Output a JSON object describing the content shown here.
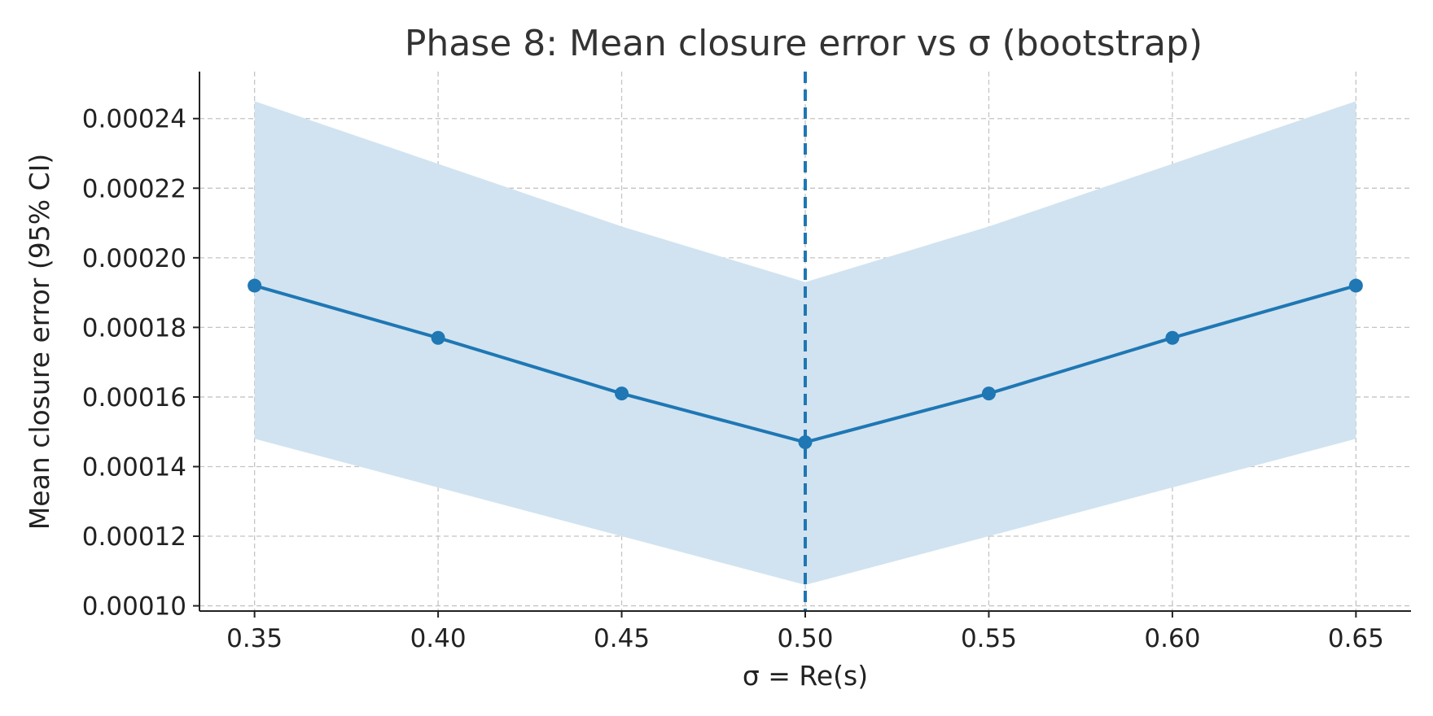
{
  "chart_data": {
    "type": "line",
    "title": "Phase 8: Mean closure error vs σ (bootstrap)",
    "xlabel": "σ = Re(s)",
    "ylabel": "Mean closure error (95% CI)",
    "xlim": [
      0.335,
      0.665
    ],
    "ylim": [
      9.85e-05,
      0.0002535
    ],
    "x_ticks": [
      0.35,
      0.4,
      0.45,
      0.5,
      0.55,
      0.6,
      0.65
    ],
    "x_tick_labels": [
      "0.35",
      "0.40",
      "0.45",
      "0.50",
      "0.55",
      "0.60",
      "0.65"
    ],
    "y_ticks": [
      0.0001,
      0.00012,
      0.00014,
      0.00016,
      0.00018,
      0.0002,
      0.00022,
      0.00024
    ],
    "y_tick_labels": [
      "0.00010",
      "0.00012",
      "0.00014",
      "0.00016",
      "0.00018",
      "0.00020",
      "0.00022",
      "0.00024"
    ],
    "grid": true,
    "series": [
      {
        "x": [
          0.35,
          0.4,
          0.45,
          0.5,
          0.55,
          0.6,
          0.65
        ],
        "y": [
          0.000192,
          0.000177,
          0.000161,
          0.000147,
          0.000161,
          0.000177,
          0.000192
        ],
        "ci_lower": [
          0.000148,
          0.000134,
          0.00012,
          0.000106,
          0.00012,
          0.000134,
          0.000148
        ],
        "ci_upper": [
          0.000245,
          0.000227,
          0.000209,
          0.000193,
          0.000209,
          0.000227,
          0.000245
        ],
        "color": "#1f77b4",
        "band_color": "#d1e3f0"
      }
    ],
    "reference_line": {
      "x": 0.5,
      "style": "dashed",
      "color": "#1f77b4"
    }
  }
}
